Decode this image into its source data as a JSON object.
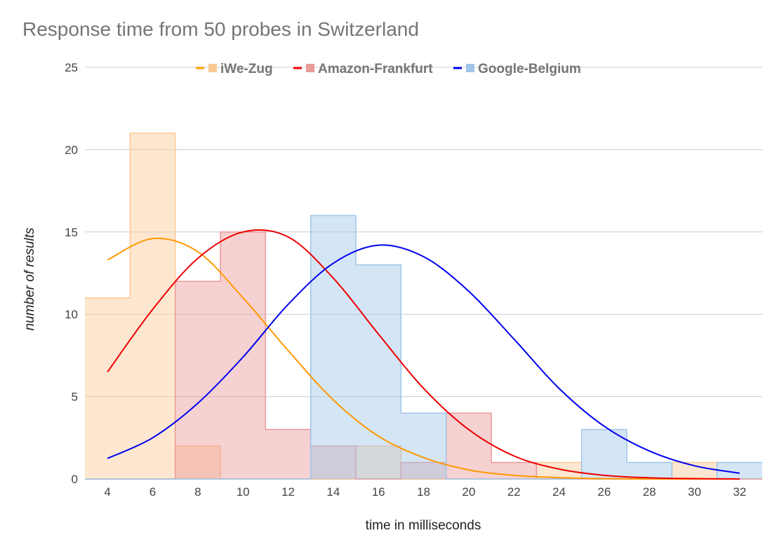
{
  "chart_data": {
    "type": "histogram",
    "title": "Response time from 50 probes in Switzerland",
    "xlabel": "time in milliseconds",
    "ylabel": "number of results",
    "ylim": [
      0,
      25
    ],
    "xlim": [
      3,
      33
    ],
    "y_ticks": [
      0,
      5,
      10,
      15,
      20,
      25
    ],
    "x_ticks": [
      4,
      6,
      8,
      10,
      12,
      14,
      16,
      18,
      20,
      22,
      24,
      26,
      28,
      30,
      32
    ],
    "grid": true,
    "legend_position": "top",
    "bin_edges": [
      3,
      5,
      7,
      9,
      11,
      13,
      15,
      17,
      19,
      21,
      23,
      25,
      27,
      29,
      31,
      33
    ],
    "series": [
      {
        "name": "iWe-Zug",
        "color": "#ff9900",
        "fill": "#fbc996",
        "counts": [
          11,
          21,
          2,
          0,
          0,
          0,
          2,
          0,
          0,
          0,
          1,
          0,
          0,
          1,
          0
        ],
        "curve": {
          "x": [
            4,
            6,
            8,
            10,
            12,
            14,
            16,
            18,
            20,
            22,
            24,
            26,
            28,
            30,
            32
          ],
          "y": [
            13.3,
            14.6,
            13.8,
            11.0,
            7.8,
            4.8,
            2.6,
            1.3,
            0.55,
            0.22,
            0.08,
            0.02,
            0.0,
            0.0,
            0.0
          ]
        }
      },
      {
        "name": "Amazon-Frankfurt",
        "color": "#ee0000",
        "fill": "#ea9999",
        "counts": [
          0,
          0,
          12,
          15,
          3,
          2,
          0,
          1,
          4,
          1,
          0,
          0,
          0,
          0,
          0
        ],
        "curve": {
          "x": [
            4,
            6,
            8,
            10,
            12,
            14,
            16,
            18,
            20,
            22,
            24,
            26,
            28,
            30,
            32
          ],
          "y": [
            6.5,
            10.3,
            13.4,
            15.0,
            14.7,
            12.2,
            8.8,
            5.5,
            3.0,
            1.4,
            0.6,
            0.22,
            0.07,
            0.02,
            0.0
          ]
        }
      },
      {
        "name": "Google-Belgium",
        "color": "#0000ee",
        "fill": "#9fc5e8",
        "counts": [
          0,
          0,
          0,
          0,
          0,
          16,
          13,
          4,
          0,
          0,
          0,
          3,
          1,
          0,
          1
        ],
        "curve": {
          "x": [
            4,
            6,
            8,
            10,
            12,
            14,
            16,
            18,
            20,
            22,
            24,
            26,
            28,
            30,
            32
          ],
          "y": [
            1.25,
            2.5,
            4.6,
            7.4,
            10.6,
            13.1,
            14.2,
            13.5,
            11.4,
            8.5,
            5.5,
            3.2,
            1.7,
            0.8,
            0.35
          ]
        }
      }
    ]
  }
}
